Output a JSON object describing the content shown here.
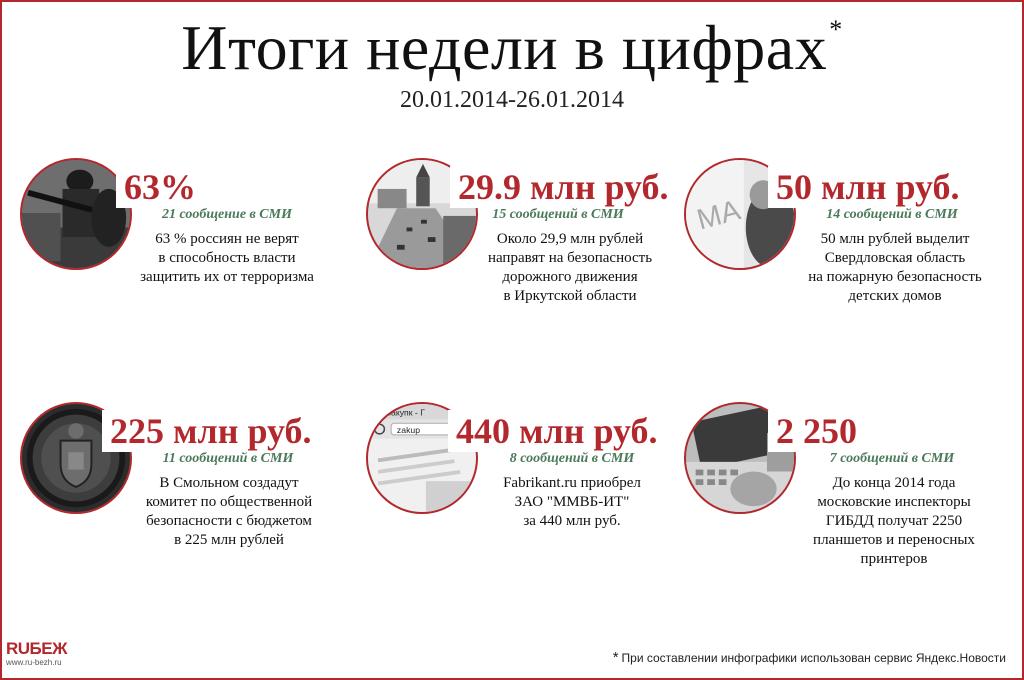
{
  "header": {
    "title": "Итоги недели в цифрах",
    "title_mark": "*",
    "dates": "20.01.2014-26.01.2014"
  },
  "cards": [
    {
      "figure": "63%",
      "mentions": "21 сообщение в СМИ",
      "lines": [
        "63 % россиян не верят",
        "в способность власти",
        "защитить их от терроризма"
      ],
      "image": "armed-soldiers-photo"
    },
    {
      "figure": "29.9 млн руб.",
      "mentions": "15 сообщений в СМИ",
      "lines": [
        "Около 29,9 млн рублей",
        "направят на безопасность",
        "дорожного движения",
        "в Иркутской области"
      ],
      "image": "city-road-photo"
    },
    {
      "figure": "50 млн руб.",
      "mentions": "14 сообщений в СМИ",
      "lines": [
        "50 млн рублей выделит",
        "Свердловская область",
        "на пожарную безопасность",
        "детских домов"
      ],
      "image": "child-drawing-photo"
    },
    {
      "figure": "225 млн руб.",
      "mentions": "11 сообщений в СМИ",
      "lines": [
        "В Смольном создадут",
        "комитет по общественной",
        "безопасности с бюджетом",
        "в 225 млн рублей"
      ],
      "image": "coat-of-arms-photo"
    },
    {
      "figure": "440 млн руб.",
      "mentions": "8 сообщений в СМИ",
      "lines": [
        "Fabrikant.ru приобрел",
        "ЗАО \"ММВБ-ИТ\"",
        "за 440 млн руб."
      ],
      "image": "browser-screen-photo"
    },
    {
      "figure": "2 250",
      "mentions": "7 сообщений в СМИ",
      "lines": [
        "До конца 2014 года",
        "московские инспекторы",
        "ГИБДД получат 2250",
        "планшетов и переносных",
        "принтеров"
      ],
      "image": "tablet-hand-photo"
    }
  ],
  "images": {
    "browser_tab_text": "Госзакупк - Г",
    "browser_url_text": "zakup"
  },
  "footer": {
    "logo_main": "RUБЕЖ",
    "logo_sub": "www.ru-bezh.ru",
    "note_mark": "*",
    "note": "При составлении инфографики использован сервис Яндекс.Новости"
  },
  "colors": {
    "accent": "#b3282d",
    "mentions": "#4a7a5a",
    "text": "#111111"
  }
}
